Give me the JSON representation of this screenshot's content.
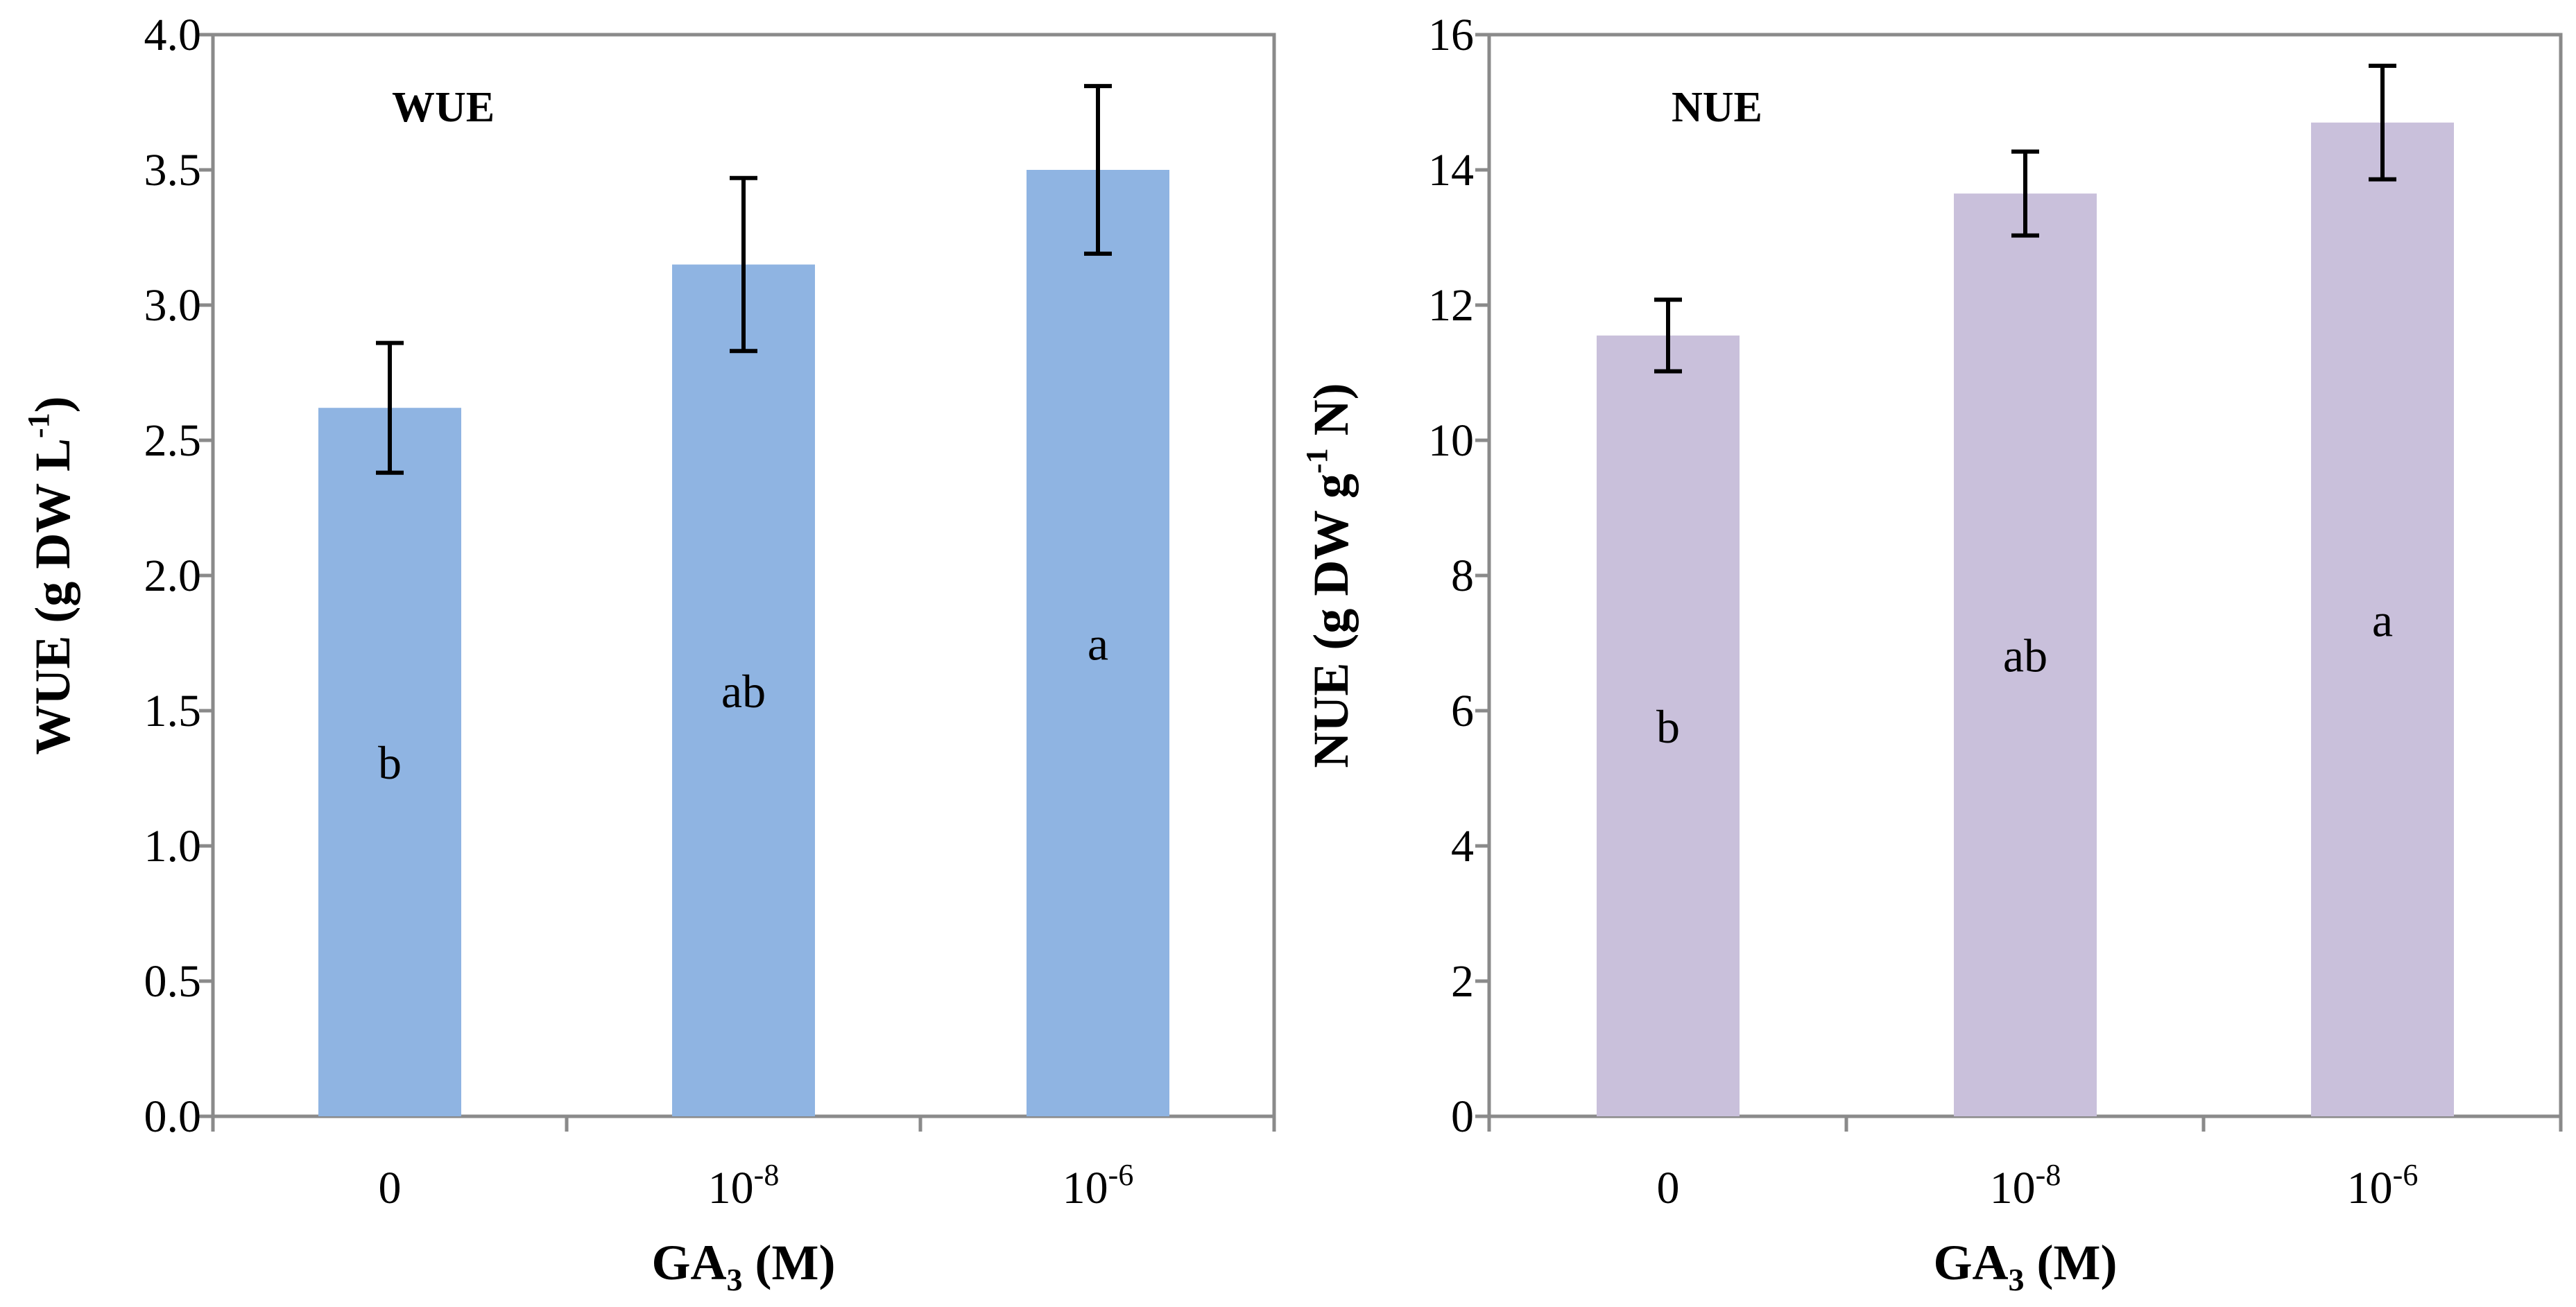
{
  "chart_data": [
    {
      "type": "bar",
      "title": "WUE",
      "categories": [
        "0",
        "10-8",
        "10-6"
      ],
      "category_labels": [
        {
          "base": "0",
          "sup": ""
        },
        {
          "base": "10",
          "sup": "-8"
        },
        {
          "base": "10",
          "sup": "-6"
        }
      ],
      "values": [
        2.62,
        3.15,
        3.5
      ],
      "errors": [
        0.24,
        0.32,
        0.31
      ],
      "significance": [
        "b",
        "ab",
        "a"
      ],
      "bar_color": "#8FB4E2",
      "ylim": [
        0,
        4.0
      ],
      "yticks": [
        "0.0",
        "0.5",
        "1.0",
        "1.5",
        "2.0",
        "2.5",
        "3.0",
        "3.5",
        "4.0"
      ],
      "xlabel": {
        "base": "GA",
        "sub": "3",
        "rest": " (M)"
      },
      "ylabel": {
        "base": "WUE (g DW L",
        "sup": "-1",
        "rest": ")"
      }
    },
    {
      "type": "bar",
      "title": "NUE",
      "categories": [
        "0",
        "10-8",
        "10-6"
      ],
      "category_labels": [
        {
          "base": "0",
          "sup": ""
        },
        {
          "base": "10",
          "sup": "-8"
        },
        {
          "base": "10",
          "sup": "-6"
        }
      ],
      "values": [
        11.55,
        13.65,
        14.7
      ],
      "errors": [
        0.53,
        0.62,
        0.84
      ],
      "significance": [
        "b",
        "ab",
        "a"
      ],
      "bar_color": "#C9C0DB",
      "ylim": [
        0,
        16
      ],
      "yticks": [
        "0",
        "2",
        "4",
        "6",
        "8",
        "10",
        "12",
        "14",
        "16"
      ],
      "xlabel": {
        "base": "GA",
        "sub": "3",
        "rest": " (M)"
      },
      "ylabel": {
        "base": "NUE (g DW g",
        "sup": "-1",
        "rest": " N)"
      }
    }
  ]
}
